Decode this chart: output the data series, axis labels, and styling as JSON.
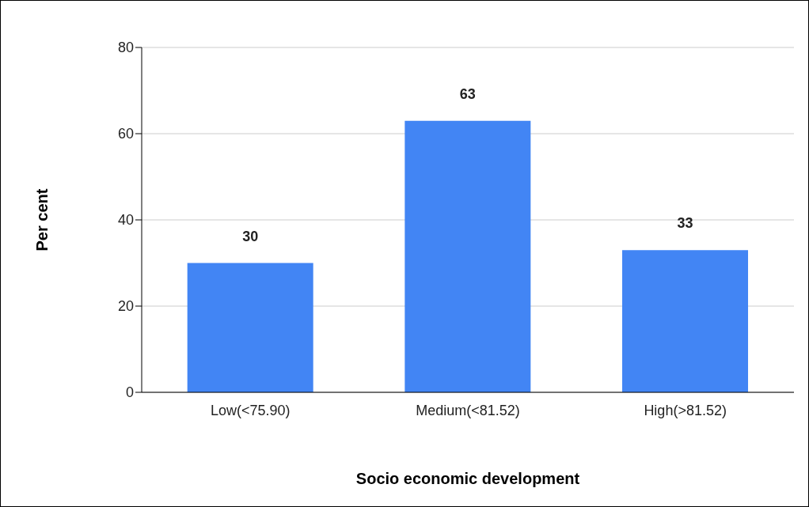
{
  "chart_data": {
    "type": "bar",
    "xlabel": "Socio economic development",
    "ylabel": "Per cent",
    "categories": [
      "Low(<75.90)",
      "Medium(<81.52)",
      "High(>81.52)"
    ],
    "values": [
      30,
      63,
      33
    ],
    "color": "#4285f4",
    "ylim": [
      0,
      80
    ],
    "yticks": [
      0,
      20,
      40,
      60,
      80
    ],
    "grid": "y",
    "data_labels": true
  }
}
